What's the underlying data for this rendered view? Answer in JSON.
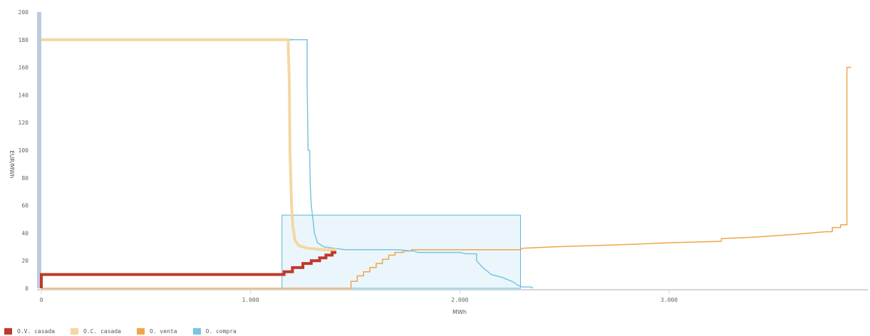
{
  "chart_data": {
    "type": "line",
    "title": "",
    "xlabel": "MWh",
    "ylabel": "EUR/MWh",
    "xlim": [
      0,
      3950
    ],
    "ylim": [
      0,
      200
    ],
    "x_ticks": [
      {
        "value": 0,
        "label": "0"
      },
      {
        "value": 1000,
        "label": "1.000"
      },
      {
        "value": 2000,
        "label": "2.000"
      },
      {
        "value": 3000,
        "label": "3.000"
      }
    ],
    "y_ticks": [
      0,
      20,
      40,
      60,
      80,
      100,
      120,
      140,
      160,
      180,
      200
    ],
    "grid": false,
    "legend_position": "bottom-left",
    "highlight_box": {
      "x": [
        1150,
        2290
      ],
      "y": [
        0,
        53
      ]
    },
    "series": [
      {
        "name": "O.V. casada",
        "color": "#c0392b",
        "width": 4,
        "points": [
          [
            0,
            0
          ],
          [
            0,
            10
          ],
          [
            1160,
            10
          ],
          [
            1160,
            12
          ],
          [
            1200,
            12
          ],
          [
            1200,
            15
          ],
          [
            1250,
            15
          ],
          [
            1250,
            18
          ],
          [
            1290,
            18
          ],
          [
            1290,
            20
          ],
          [
            1330,
            20
          ],
          [
            1330,
            22
          ],
          [
            1360,
            22
          ],
          [
            1360,
            24
          ],
          [
            1390,
            24
          ],
          [
            1390,
            26
          ],
          [
            1410,
            26
          ]
        ]
      },
      {
        "name": "O.C. casada",
        "color": "#f3d7a4",
        "width": 4,
        "points": [
          [
            0,
            180
          ],
          [
            1180,
            180
          ],
          [
            1180,
            175
          ],
          [
            1185,
            150
          ],
          [
            1188,
            100
          ],
          [
            1192,
            80
          ],
          [
            1196,
            60
          ],
          [
            1202,
            45
          ],
          [
            1212,
            35
          ],
          [
            1230,
            31
          ],
          [
            1270,
            29
          ],
          [
            1350,
            28
          ],
          [
            1410,
            28
          ]
        ]
      },
      {
        "name": "O. venta",
        "color": "#f0a54a",
        "width": 1.5,
        "points": [
          [
            0,
            0
          ],
          [
            1480,
            0
          ],
          [
            1480,
            5
          ],
          [
            1510,
            5
          ],
          [
            1510,
            9
          ],
          [
            1540,
            9
          ],
          [
            1540,
            12
          ],
          [
            1570,
            12
          ],
          [
            1570,
            15
          ],
          [
            1600,
            15
          ],
          [
            1600,
            18
          ],
          [
            1630,
            18
          ],
          [
            1630,
            21
          ],
          [
            1660,
            21
          ],
          [
            1660,
            24
          ],
          [
            1690,
            24
          ],
          [
            1690,
            26
          ],
          [
            1730,
            26
          ],
          [
            1730,
            27
          ],
          [
            1770,
            27
          ],
          [
            1770,
            28
          ],
          [
            2290,
            28
          ],
          [
            2300,
            29
          ],
          [
            2450,
            30
          ],
          [
            2650,
            31
          ],
          [
            2850,
            32
          ],
          [
            3000,
            33
          ],
          [
            3250,
            34
          ],
          [
            3250,
            36
          ],
          [
            3400,
            37
          ],
          [
            3600,
            39
          ],
          [
            3750,
            41
          ],
          [
            3780,
            41
          ],
          [
            3780,
            44
          ],
          [
            3820,
            44
          ],
          [
            3820,
            46
          ],
          [
            3850,
            46
          ],
          [
            3850,
            160
          ],
          [
            3870,
            160
          ]
        ]
      },
      {
        "name": "O. compra",
        "color": "#7cc4df",
        "width": 1.5,
        "points": [
          [
            0,
            180
          ],
          [
            1270,
            180
          ],
          [
            1270,
            150
          ],
          [
            1275,
            100
          ],
          [
            1282,
            100
          ],
          [
            1285,
            75
          ],
          [
            1290,
            60
          ],
          [
            1298,
            50
          ],
          [
            1305,
            40
          ],
          [
            1320,
            33
          ],
          [
            1350,
            30
          ],
          [
            1400,
            29
          ],
          [
            1450,
            28
          ],
          [
            1700,
            28
          ],
          [
            1780,
            27
          ],
          [
            1800,
            26
          ],
          [
            2000,
            26
          ],
          [
            2030,
            25
          ],
          [
            2080,
            25
          ],
          [
            2080,
            20
          ],
          [
            2110,
            15
          ],
          [
            2150,
            10
          ],
          [
            2200,
            8
          ],
          [
            2250,
            5
          ],
          [
            2280,
            2
          ],
          [
            2300,
            1
          ],
          [
            2340,
            1
          ],
          [
            2350,
            0
          ]
        ]
      },
      {
        "name": "",
        "color": "#9ccf8c",
        "width": 2,
        "points": [
          [
            0,
            180
          ],
          [
            1200,
            180
          ]
        ]
      }
    ]
  }
}
